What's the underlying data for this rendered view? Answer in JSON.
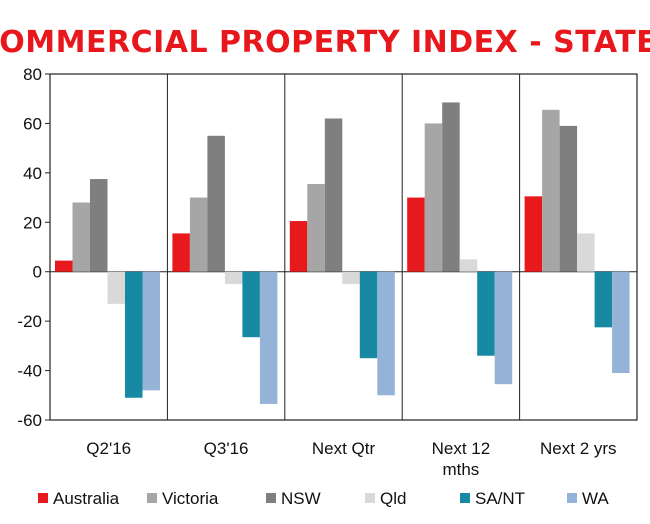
{
  "chart_data": {
    "type": "bar",
    "title": "COMMERCIAL PROPERTY INDEX - STATE",
    "xlabel": "",
    "ylabel": "",
    "categories": [
      [
        "Q2'16"
      ],
      [
        "Q3'16"
      ],
      [
        "Next Qtr"
      ],
      [
        "Next 12",
        "mths"
      ],
      [
        "Next 2 yrs"
      ]
    ],
    "ylim": [
      -60,
      80
    ],
    "yticks": [
      80,
      60,
      40,
      20,
      0,
      -20,
      -40,
      -60
    ],
    "grid": "vertical category separators",
    "legend_placement": "bottom",
    "series": [
      {
        "name": "Australia",
        "color": "#e8191c",
        "values": [
          4.5,
          15.5,
          20.5,
          30,
          30.5
        ]
      },
      {
        "name": "Victoria",
        "color": "#a6a6a6",
        "values": [
          28,
          30,
          35.5,
          60,
          65.5
        ]
      },
      {
        "name": "NSW",
        "color": "#7f7f7f",
        "values": [
          37.5,
          55,
          62,
          68.5,
          59
        ]
      },
      {
        "name": "Qld",
        "color": "#d9d9d9",
        "values": [
          -13,
          -5,
          -5,
          5,
          15.5
        ]
      },
      {
        "name": "SA/NT",
        "color": "#1789a3",
        "values": [
          -51,
          -26.5,
          -35,
          -34,
          -22.5
        ]
      },
      {
        "name": "WA",
        "color": "#95b3d7",
        "values": [
          -48,
          -53.5,
          -50,
          -45.5,
          -41
        ]
      }
    ]
  }
}
